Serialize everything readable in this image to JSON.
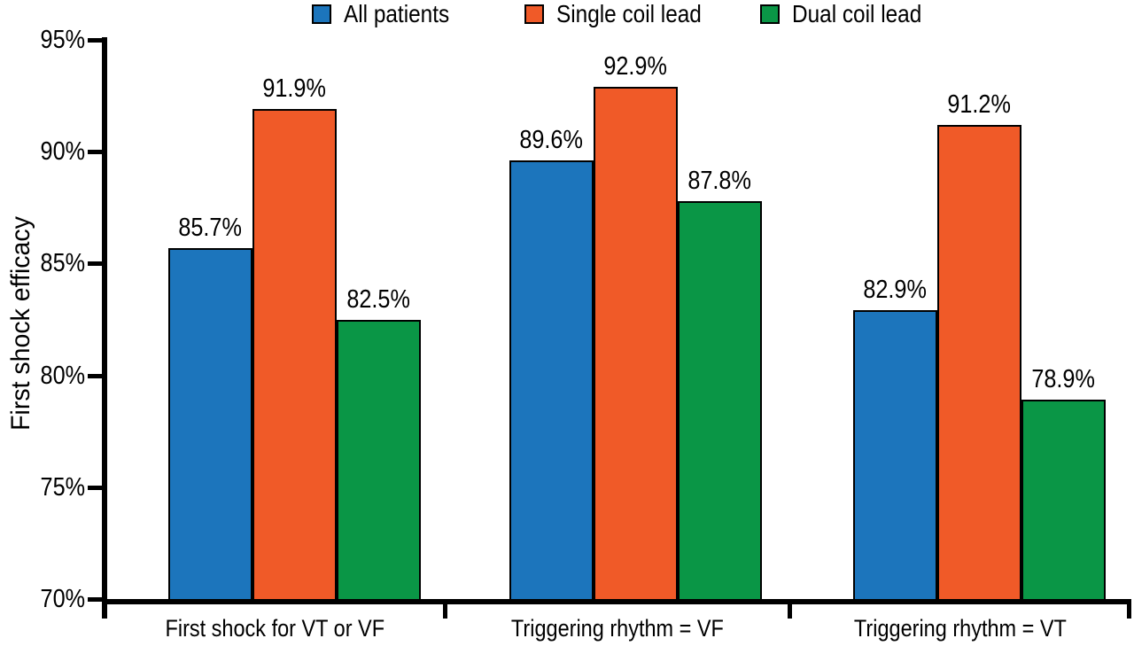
{
  "chart_data": {
    "type": "bar",
    "title": "",
    "ylabel": "First shock efficacy",
    "xlabel": "",
    "ylim": [
      70,
      95
    ],
    "ytick_values": [
      70,
      75,
      80,
      85,
      90,
      95
    ],
    "ytick_suffix": "%",
    "grid": false,
    "legend_position": "top-center",
    "categories": [
      "First shock for VT or VF",
      "Triggering rhythm = VF",
      "Triggering rhythm = VT"
    ],
    "series": [
      {
        "name": "All patients",
        "color": "#1C75BC",
        "values": [
          85.7,
          89.6,
          82.9
        ]
      },
      {
        "name": "Single coil lead",
        "color": "#F05A28",
        "values": [
          91.9,
          92.9,
          91.2
        ]
      },
      {
        "name": "Dual coil lead",
        "color": "#0A9646",
        "values": [
          82.5,
          87.8,
          78.9
        ]
      }
    ],
    "value_labels": [
      [
        "85.7%",
        "89.6%",
        "82.9%"
      ],
      [
        "91.9%",
        "92.9%",
        "91.2%"
      ],
      [
        "82.5%",
        "87.8%",
        "78.9%"
      ]
    ],
    "bar_border_color": "#000000",
    "axis_color": "#000000",
    "text_color": "#000000",
    "background": "#FFFFFF"
  }
}
